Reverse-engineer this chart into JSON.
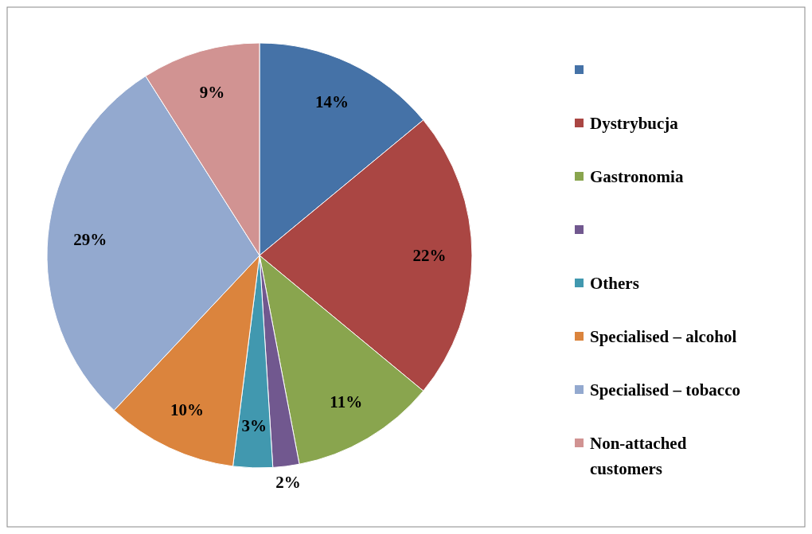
{
  "chart_data": {
    "type": "pie",
    "categories": [
      null,
      "Dystrybucja",
      "Gastronomia",
      null,
      "Others",
      "Specialised – alcohol",
      "Specialised – tobacco",
      "Non-attached customers"
    ],
    "values": [
      14,
      22,
      11,
      2,
      3,
      10,
      29,
      9
    ],
    "colors": [
      "#4572a7",
      "#aa4643",
      "#89a54e",
      "#71588f",
      "#4198af",
      "#db843d",
      "#93a9cf",
      "#d19392"
    ],
    "value_labels": [
      "14%",
      "22%",
      "11%",
      "2%",
      "3%",
      "10%",
      "29%",
      "9%"
    ],
    "legend": "right"
  }
}
